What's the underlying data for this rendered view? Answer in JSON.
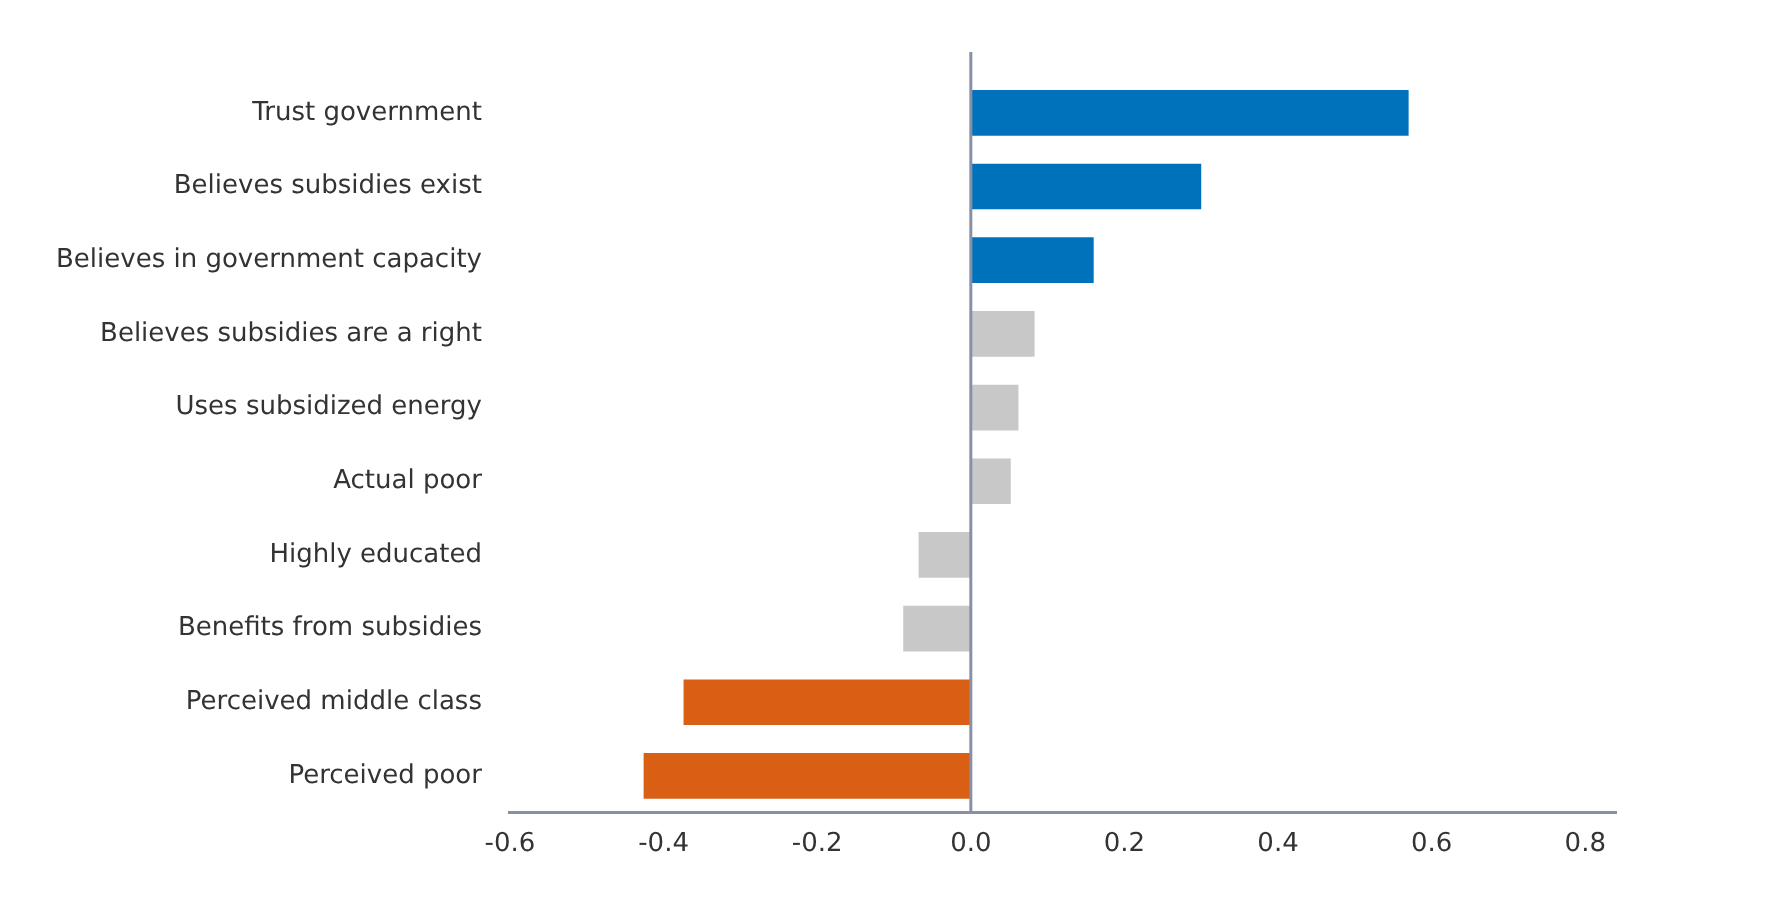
{
  "chart_data": {
    "type": "bar",
    "orientation": "horizontal",
    "categories": [
      "Trust government",
      "Believes subsidies exist",
      "Believes in government capacity",
      "Believes subsidies are a right",
      "Uses subsidized energy",
      "Actual poor",
      "Highly educated",
      "Benefits from subsidies",
      "Perceived middle class",
      "Perceived poor"
    ],
    "values": [
      0.57,
      0.3,
      0.16,
      0.083,
      0.062,
      0.052,
      -0.068,
      -0.088,
      -0.374,
      -0.426
    ],
    "colors": [
      "#0072bb",
      "#0072bb",
      "#0072bb",
      "#c8c8c8",
      "#c8c8c8",
      "#c8c8c8",
      "#c8c8c8",
      "#c8c8c8",
      "#d95f14",
      "#d95f14"
    ],
    "xlim": [
      -0.6,
      0.84
    ],
    "xticks": [
      {
        "value": -0.6,
        "label": "-0.6"
      },
      {
        "value": -0.4,
        "label": "-0.4"
      },
      {
        "value": -0.2,
        "label": "-0.2"
      },
      {
        "value": 0,
        "label": "0.0"
      },
      {
        "value": 0.2,
        "label": "0.2"
      },
      {
        "value": 0.4,
        "label": "0.4"
      },
      {
        "value": 0.6,
        "label": "0.6"
      },
      {
        "value": 0.8,
        "label": "0.8"
      }
    ],
    "ref_lines": [
      {
        "axis": "x",
        "value": 0,
        "color": "#8a8fa8"
      }
    ],
    "grid": false,
    "legend": false
  }
}
